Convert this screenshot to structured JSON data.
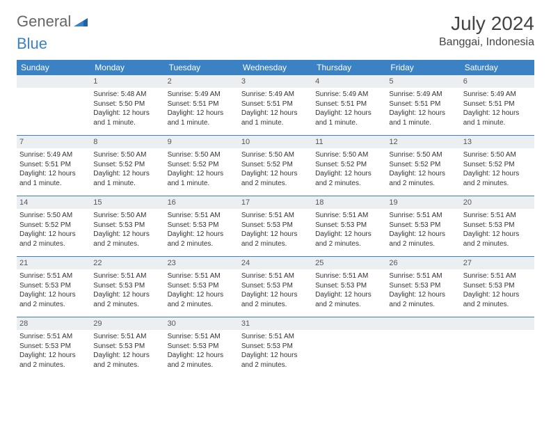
{
  "logo": {
    "part1": "General",
    "part2": "Blue"
  },
  "title": "July 2024",
  "location": "Banggai, Indonesia",
  "colors": {
    "header_bg": "#3b82c4",
    "header_text": "#ffffff",
    "daynum_bg": "#eceff1",
    "week_divider": "#3b82c4",
    "body_text": "#333333",
    "logo_gray": "#666666",
    "logo_blue": "#3b82c4"
  },
  "day_names": [
    "Sunday",
    "Monday",
    "Tuesday",
    "Wednesday",
    "Thursday",
    "Friday",
    "Saturday"
  ],
  "weeks": [
    [
      {
        "day": "",
        "sunrise": "",
        "sunset": "",
        "daylight": ""
      },
      {
        "day": "1",
        "sunrise": "Sunrise: 5:48 AM",
        "sunset": "Sunset: 5:50 PM",
        "daylight": "Daylight: 12 hours and 1 minute."
      },
      {
        "day": "2",
        "sunrise": "Sunrise: 5:49 AM",
        "sunset": "Sunset: 5:51 PM",
        "daylight": "Daylight: 12 hours and 1 minute."
      },
      {
        "day": "3",
        "sunrise": "Sunrise: 5:49 AM",
        "sunset": "Sunset: 5:51 PM",
        "daylight": "Daylight: 12 hours and 1 minute."
      },
      {
        "day": "4",
        "sunrise": "Sunrise: 5:49 AM",
        "sunset": "Sunset: 5:51 PM",
        "daylight": "Daylight: 12 hours and 1 minute."
      },
      {
        "day": "5",
        "sunrise": "Sunrise: 5:49 AM",
        "sunset": "Sunset: 5:51 PM",
        "daylight": "Daylight: 12 hours and 1 minute."
      },
      {
        "day": "6",
        "sunrise": "Sunrise: 5:49 AM",
        "sunset": "Sunset: 5:51 PM",
        "daylight": "Daylight: 12 hours and 1 minute."
      }
    ],
    [
      {
        "day": "7",
        "sunrise": "Sunrise: 5:49 AM",
        "sunset": "Sunset: 5:51 PM",
        "daylight": "Daylight: 12 hours and 1 minute."
      },
      {
        "day": "8",
        "sunrise": "Sunrise: 5:50 AM",
        "sunset": "Sunset: 5:52 PM",
        "daylight": "Daylight: 12 hours and 1 minute."
      },
      {
        "day": "9",
        "sunrise": "Sunrise: 5:50 AM",
        "sunset": "Sunset: 5:52 PM",
        "daylight": "Daylight: 12 hours and 1 minute."
      },
      {
        "day": "10",
        "sunrise": "Sunrise: 5:50 AM",
        "sunset": "Sunset: 5:52 PM",
        "daylight": "Daylight: 12 hours and 2 minutes."
      },
      {
        "day": "11",
        "sunrise": "Sunrise: 5:50 AM",
        "sunset": "Sunset: 5:52 PM",
        "daylight": "Daylight: 12 hours and 2 minutes."
      },
      {
        "day": "12",
        "sunrise": "Sunrise: 5:50 AM",
        "sunset": "Sunset: 5:52 PM",
        "daylight": "Daylight: 12 hours and 2 minutes."
      },
      {
        "day": "13",
        "sunrise": "Sunrise: 5:50 AM",
        "sunset": "Sunset: 5:52 PM",
        "daylight": "Daylight: 12 hours and 2 minutes."
      }
    ],
    [
      {
        "day": "14",
        "sunrise": "Sunrise: 5:50 AM",
        "sunset": "Sunset: 5:52 PM",
        "daylight": "Daylight: 12 hours and 2 minutes."
      },
      {
        "day": "15",
        "sunrise": "Sunrise: 5:50 AM",
        "sunset": "Sunset: 5:53 PM",
        "daylight": "Daylight: 12 hours and 2 minutes."
      },
      {
        "day": "16",
        "sunrise": "Sunrise: 5:51 AM",
        "sunset": "Sunset: 5:53 PM",
        "daylight": "Daylight: 12 hours and 2 minutes."
      },
      {
        "day": "17",
        "sunrise": "Sunrise: 5:51 AM",
        "sunset": "Sunset: 5:53 PM",
        "daylight": "Daylight: 12 hours and 2 minutes."
      },
      {
        "day": "18",
        "sunrise": "Sunrise: 5:51 AM",
        "sunset": "Sunset: 5:53 PM",
        "daylight": "Daylight: 12 hours and 2 minutes."
      },
      {
        "day": "19",
        "sunrise": "Sunrise: 5:51 AM",
        "sunset": "Sunset: 5:53 PM",
        "daylight": "Daylight: 12 hours and 2 minutes."
      },
      {
        "day": "20",
        "sunrise": "Sunrise: 5:51 AM",
        "sunset": "Sunset: 5:53 PM",
        "daylight": "Daylight: 12 hours and 2 minutes."
      }
    ],
    [
      {
        "day": "21",
        "sunrise": "Sunrise: 5:51 AM",
        "sunset": "Sunset: 5:53 PM",
        "daylight": "Daylight: 12 hours and 2 minutes."
      },
      {
        "day": "22",
        "sunrise": "Sunrise: 5:51 AM",
        "sunset": "Sunset: 5:53 PM",
        "daylight": "Daylight: 12 hours and 2 minutes."
      },
      {
        "day": "23",
        "sunrise": "Sunrise: 5:51 AM",
        "sunset": "Sunset: 5:53 PM",
        "daylight": "Daylight: 12 hours and 2 minutes."
      },
      {
        "day": "24",
        "sunrise": "Sunrise: 5:51 AM",
        "sunset": "Sunset: 5:53 PM",
        "daylight": "Daylight: 12 hours and 2 minutes."
      },
      {
        "day": "25",
        "sunrise": "Sunrise: 5:51 AM",
        "sunset": "Sunset: 5:53 PM",
        "daylight": "Daylight: 12 hours and 2 minutes."
      },
      {
        "day": "26",
        "sunrise": "Sunrise: 5:51 AM",
        "sunset": "Sunset: 5:53 PM",
        "daylight": "Daylight: 12 hours and 2 minutes."
      },
      {
        "day": "27",
        "sunrise": "Sunrise: 5:51 AM",
        "sunset": "Sunset: 5:53 PM",
        "daylight": "Daylight: 12 hours and 2 minutes."
      }
    ],
    [
      {
        "day": "28",
        "sunrise": "Sunrise: 5:51 AM",
        "sunset": "Sunset: 5:53 PM",
        "daylight": "Daylight: 12 hours and 2 minutes."
      },
      {
        "day": "29",
        "sunrise": "Sunrise: 5:51 AM",
        "sunset": "Sunset: 5:53 PM",
        "daylight": "Daylight: 12 hours and 2 minutes."
      },
      {
        "day": "30",
        "sunrise": "Sunrise: 5:51 AM",
        "sunset": "Sunset: 5:53 PM",
        "daylight": "Daylight: 12 hours and 2 minutes."
      },
      {
        "day": "31",
        "sunrise": "Sunrise: 5:51 AM",
        "sunset": "Sunset: 5:53 PM",
        "daylight": "Daylight: 12 hours and 2 minutes."
      },
      {
        "day": "",
        "sunrise": "",
        "sunset": "",
        "daylight": ""
      },
      {
        "day": "",
        "sunrise": "",
        "sunset": "",
        "daylight": ""
      },
      {
        "day": "",
        "sunrise": "",
        "sunset": "",
        "daylight": ""
      }
    ]
  ]
}
